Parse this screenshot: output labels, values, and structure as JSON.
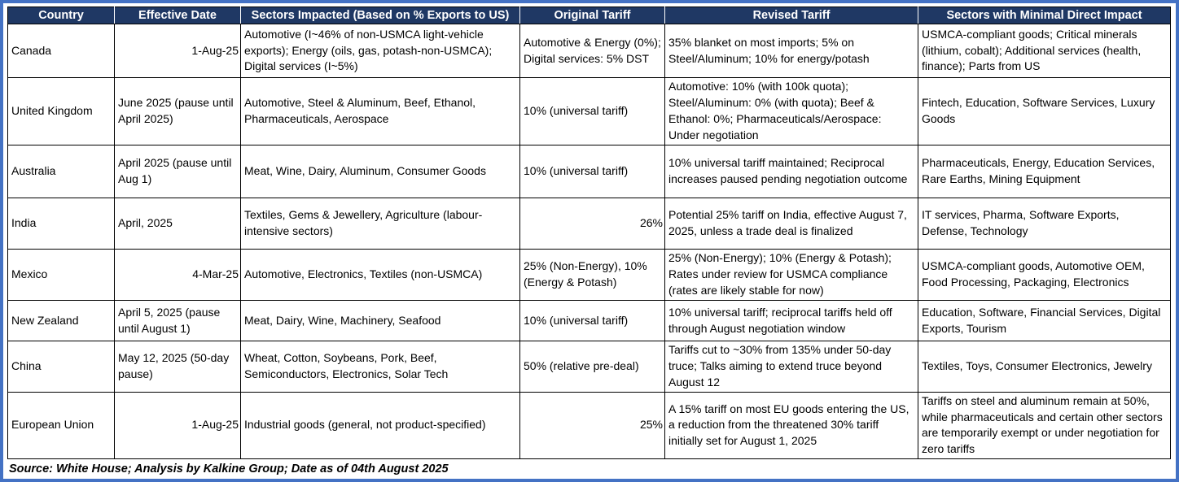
{
  "colors": {
    "frame_border": "#4472C4",
    "header_bg": "#1F3864",
    "header_text": "#FFFFFF",
    "cell_border": "#000000"
  },
  "table": {
    "columns": [
      "Country",
      "Effective Date",
      "Sectors Impacted (Based on % Exports to US)",
      "Original Tariff",
      "Revised Tariff",
      "Sectors with Minimal Direct Impact"
    ],
    "rows": [
      {
        "country": "Canada",
        "effective_date": "1-Aug-25",
        "sectors_impacted": "Automotive (I~46% of non-USMCA light-vehicle exports); Energy (oils, gas, potash-non-USMCA); Digital services (I~5%)",
        "original_tariff": "Automotive & Energy (0%); Digital services: 5% DST",
        "revised_tariff": "35% blanket on most imports; 5% on Steel/Aluminum; 10% for energy/potash",
        "minimal_impact": "USMCA-compliant goods; Critical minerals (lithium, cobalt); Additional services (health, finance); Parts from US"
      },
      {
        "country": "United Kingdom",
        "effective_date": "June 2025 (pause until April 2025)",
        "sectors_impacted": "Automotive, Steel & Aluminum, Beef, Ethanol, Pharmaceuticals, Aerospace",
        "original_tariff": "10% (universal tariff)",
        "revised_tariff": "Automotive: 10% (with 100k quota); Steel/Aluminum: 0% (with quota); Beef & Ethanol: 0%; Pharmaceuticals/Aerospace: Under negotiation",
        "minimal_impact": "Fintech, Education, Software Services, Luxury Goods"
      },
      {
        "country": "Australia",
        "effective_date": "April 2025 (pause until Aug 1)",
        "sectors_impacted": "Meat, Wine, Dairy, Aluminum, Consumer Goods",
        "original_tariff": "10% (universal tariff)",
        "revised_tariff": "10% universal tariff maintained; Reciprocal increases paused pending negotiation outcome",
        "minimal_impact": "Pharmaceuticals, Energy, Education Services, Rare Earths, Mining Equipment"
      },
      {
        "country": "India",
        "effective_date": "April, 2025",
        "sectors_impacted": "Textiles, Gems & Jewellery, Agriculture (labour-intensive sectors)",
        "original_tariff": "26%",
        "revised_tariff": "Potential 25% tariff on India, effective August 7, 2025, unless a trade deal is finalized",
        "minimal_impact": "IT services, Pharma, Software Exports, Defense, Technology"
      },
      {
        "country": "Mexico",
        "effective_date": "4-Mar-25",
        "sectors_impacted": "Automotive, Electronics, Textiles (non-USMCA)",
        "original_tariff": "25% (Non-Energy), 10% (Energy & Potash)",
        "revised_tariff": "25% (Non-Energy); 10% (Energy & Potash); Rates under review for USMCA compliance (rates are likely stable for now)",
        "minimal_impact": "USMCA-compliant goods, Automotive OEM, Food Processing, Packaging, Electronics"
      },
      {
        "country": "New Zealand",
        "effective_date": "April 5, 2025 (pause until August 1)",
        "sectors_impacted": "Meat, Dairy, Wine, Machinery, Seafood",
        "original_tariff": "10% (universal tariff)",
        "revised_tariff": "10% universal tariff; reciprocal tariffs held off through August negotiation window",
        "minimal_impact": "Education, Software, Financial Services, Digital Exports, Tourism"
      },
      {
        "country": "China",
        "effective_date": "May 12, 2025 (50-day pause)",
        "sectors_impacted": "Wheat, Cotton, Soybeans, Pork, Beef, Semiconductors, Electronics, Solar Tech",
        "original_tariff": "50% (relative pre-deal)",
        "revised_tariff": "Tariffs cut to ~30% from 135% under 50-day truce; Talks aiming to extend truce beyond August 12",
        "minimal_impact": "Textiles, Toys, Consumer Electronics, Jewelry"
      },
      {
        "country": "European Union",
        "effective_date": "1-Aug-25",
        "sectors_impacted": "Industrial goods (general, not product-specified)",
        "original_tariff": "25%",
        "revised_tariff": "A 15% tariff on most EU goods entering the US, a reduction from the threatened 30% tariff initially set for August 1, 2025",
        "minimal_impact": "Tariffs on steel and aluminum remain at 50%, while pharmaceuticals and certain other sectors are temporarily exempt or under negotiation for zero tariffs"
      }
    ]
  },
  "footer": {
    "source": "Source: White House; Analysis by Kalkine Group; Date as of 04th August 2025"
  }
}
